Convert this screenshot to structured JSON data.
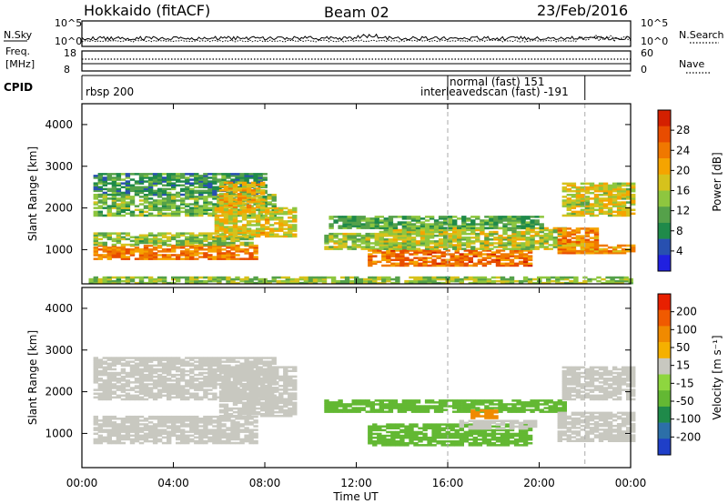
{
  "header": {
    "station": "Hokkaido (fitACF)",
    "beam": "Beam 02",
    "date": "23/Feb/2016"
  },
  "summary_panel": {
    "nsky_label": "N.Sky",
    "nsky_ticks": [
      "10^5",
      "10^0"
    ],
    "nsearch_label": "N.Search",
    "nsearch_ticks": [
      "10^5",
      "10^0"
    ],
    "freq_label_1": "Freq.",
    "freq_label_2": "[MHz]",
    "freq_ticks": [
      "18",
      "8"
    ],
    "nave_label": "Nave",
    "nave_ticks": [
      "60",
      "0"
    ],
    "cpid_label": "CPID",
    "cpid_entries": [
      {
        "text": "rbsp 200",
        "row": "lower",
        "start_hour": 0
      },
      {
        "text": "normal (fast) 151",
        "row": "upper",
        "start_hour": 16
      },
      {
        "text": "interleavedscan (fast) -191",
        "row": "lower",
        "start_hour": 16
      }
    ],
    "cpid_markers_hours": [
      16,
      22
    ]
  },
  "time_axis": {
    "label": "Time UT",
    "ticks": [
      "00:00",
      "04:00",
      "08:00",
      "12:00",
      "16:00",
      "20:00",
      "00:00"
    ],
    "range_hours": [
      0,
      24
    ]
  },
  "chart_data": [
    {
      "type": "heatmap",
      "name": "power",
      "ylabel": "Slant Range [km]",
      "yticks": [
        "1000",
        "2000",
        "3000",
        "4000"
      ],
      "ylim": [
        180,
        4500
      ],
      "colorbar_label": "Power [dB]",
      "colorbar_ticks": [
        "4",
        "8",
        "12",
        "16",
        "20",
        "24",
        "28"
      ],
      "colorbar_range": [
        0,
        32
      ],
      "colorbar_colors": [
        "#2020e0",
        "#2850b0",
        "#1f8a4a",
        "#55a14a",
        "#8ec63f",
        "#d6c21c",
        "#f5a400",
        "#f07800",
        "#e84c00",
        "#d42000"
      ],
      "dashed_marker_hours": [
        16,
        22
      ],
      "regions": [
        {
          "t": [
            0.5,
            7.7
          ],
          "r": [
            760,
            1100
          ],
          "value": 24,
          "note": "strong band"
        },
        {
          "t": [
            0.5,
            7.5
          ],
          "r": [
            1100,
            1400
          ],
          "value": 14
        },
        {
          "t": [
            0.5,
            8.4
          ],
          "r": [
            1800,
            2300
          ],
          "value": 13
        },
        {
          "t": [
            0.5,
            8.0
          ],
          "r": [
            2300,
            2800
          ],
          "value": 9
        },
        {
          "t": [
            5.8,
            9.3
          ],
          "r": [
            1300,
            2000
          ],
          "value": 18
        },
        {
          "t": [
            6.0,
            8.0
          ],
          "r": [
            2000,
            2600
          ],
          "value": 19
        },
        {
          "t": [
            10.6,
            14.5
          ],
          "r": [
            1000,
            1400
          ],
          "value": 15
        },
        {
          "t": [
            12.5,
            19.5
          ],
          "r": [
            600,
            1000
          ],
          "value": 25
        },
        {
          "t": [
            13.0,
            21.0
          ],
          "r": [
            1000,
            1500
          ],
          "value": 16
        },
        {
          "t": [
            10.8,
            20.0
          ],
          "r": [
            1500,
            1800
          ],
          "value": 11
        },
        {
          "t": [
            20.8,
            22.5
          ],
          "r": [
            900,
            1500
          ],
          "value": 23
        },
        {
          "t": [
            21.0,
            24.0
          ],
          "r": [
            900,
            1100
          ],
          "value": 22
        },
        {
          "t": [
            21.0,
            24.0
          ],
          "r": [
            1800,
            2600
          ],
          "value": 17
        },
        {
          "t": [
            0.3,
            24.0
          ],
          "r": [
            180,
            330
          ],
          "value": 14
        }
      ]
    },
    {
      "type": "heatmap",
      "name": "velocity",
      "ylabel": "Slant Range [km]",
      "yticks": [
        "1000",
        "2000",
        "3000",
        "4000"
      ],
      "ylim": [
        180,
        4500
      ],
      "colorbar_label": "Velocity [m s⁻¹]",
      "colorbar_ticks": [
        "200",
        "100",
        "50",
        "15",
        "-15",
        "-50",
        "-100",
        "-200"
      ],
      "colorbar_colors": [
        "#1f3fc8",
        "#2c6fa8",
        "#1f8a4a",
        "#63b833",
        "#8ed63f",
        "#c8c8c0",
        "#f5b000",
        "#f08a00",
        "#f05a00",
        "#e82000"
      ],
      "dashed_marker_hours": [
        16,
        22
      ],
      "regions": [
        {
          "t": [
            0.5,
            7.7
          ],
          "r": [
            750,
            1400
          ],
          "value": 0
        },
        {
          "t": [
            0.5,
            8.4
          ],
          "r": [
            1800,
            2800
          ],
          "value": 0
        },
        {
          "t": [
            6.0,
            9.3
          ],
          "r": [
            1400,
            2600
          ],
          "value": 0
        },
        {
          "t": [
            10.6,
            21.0
          ],
          "r": [
            1500,
            1800
          ],
          "value": 40
        },
        {
          "t": [
            12.5,
            19.5
          ],
          "r": [
            700,
            1200
          ],
          "value": 35
        },
        {
          "t": [
            16.5,
            19.8
          ],
          "r": [
            1100,
            1300
          ],
          "value": 0
        },
        {
          "t": [
            17.0,
            18.0
          ],
          "r": [
            1350,
            1550
          ],
          "value": -60
        },
        {
          "t": [
            20.8,
            24.0
          ],
          "r": [
            800,
            1500
          ],
          "value": 0
        },
        {
          "t": [
            21.0,
            24.0
          ],
          "r": [
            1800,
            2600
          ],
          "value": 0
        }
      ]
    }
  ]
}
